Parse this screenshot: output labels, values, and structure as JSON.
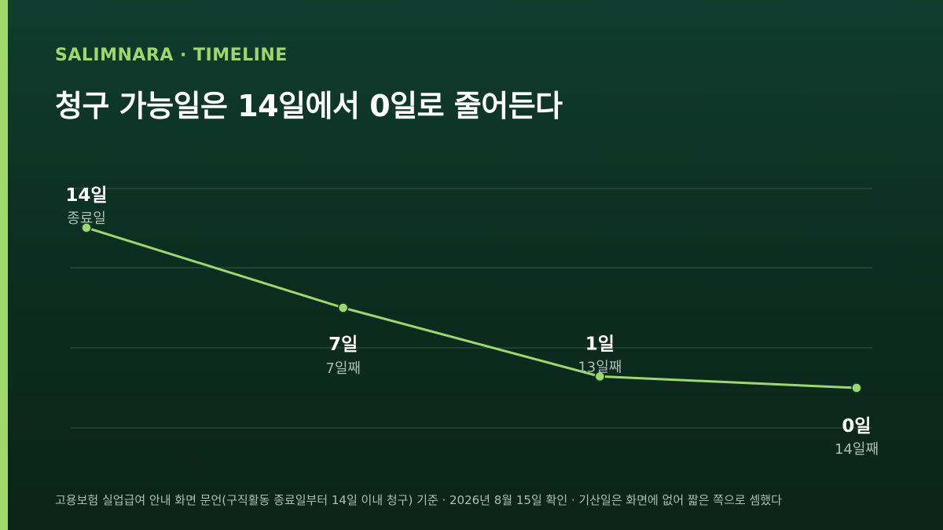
{
  "header": {
    "kicker": "SALIMNARA · TIMELINE",
    "title": "청구 가능일은 14일에서 0일로 줄어든다"
  },
  "colors": {
    "accent": "#9fd86a",
    "background": "#0f3d2e",
    "gridline": "#2f5a47",
    "label_primary": "#ffffff",
    "label_secondary": "#a9bfb2"
  },
  "chart_data": {
    "type": "line",
    "title": "청구 가능일은 14일에서 0일로 줄어든다",
    "xlabel": "",
    "ylabel": "",
    "ylim": [
      0,
      14
    ],
    "grid": true,
    "points": [
      {
        "x": "종료일",
        "y": 14,
        "value_label": "14일",
        "x_label": "종료일"
      },
      {
        "x": "7일째",
        "y": 7,
        "value_label": "7일",
        "x_label": "7일째"
      },
      {
        "x": "13일째",
        "y": 1,
        "value_label": "1일",
        "x_label": "13일째"
      },
      {
        "x": "14일째",
        "y": 0,
        "value_label": "0일",
        "x_label": "14일째"
      }
    ]
  },
  "footer": {
    "source": "고용보험 실업급여 안내 화면 문언(구직활동 종료일부터 14일 이내 청구) 기준 · 2026년 8월 15일 확인 · 기산일은 화면에 없어 짧은 쪽으로 셈했다"
  }
}
